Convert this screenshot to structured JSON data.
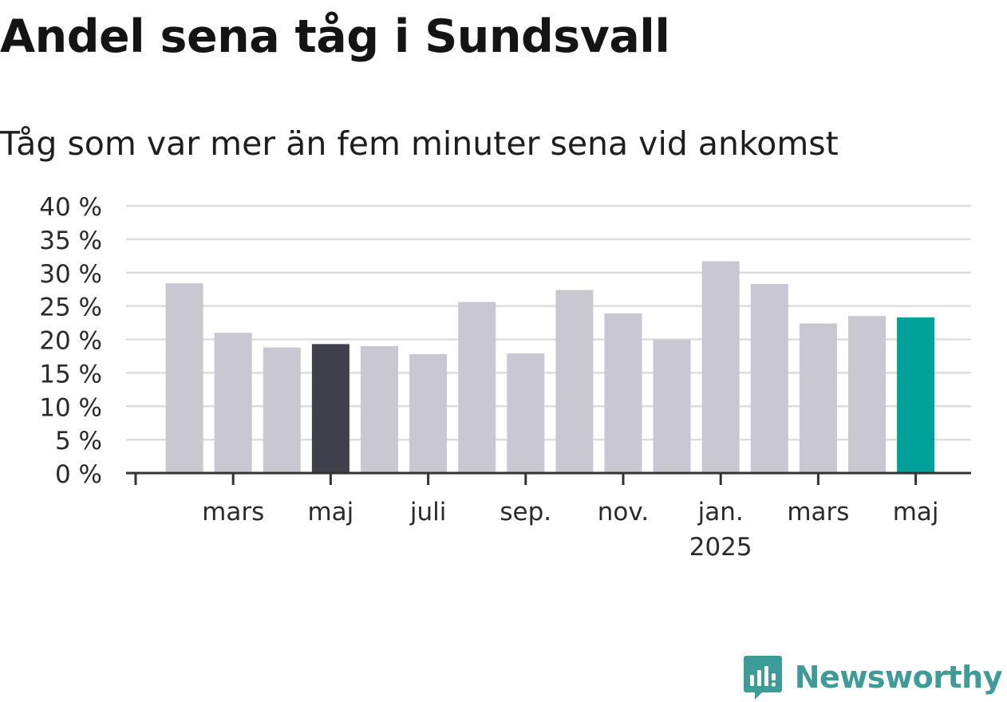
{
  "title": "Andel sena tåg i Sundsvall",
  "subtitle": "Tåg som var mer än fem minuter sena vid ankomst",
  "brand": {
    "name": "Newsworthy",
    "color": "#3e9c98"
  },
  "colors": {
    "bar_default": "#c8c7d2",
    "bar_highlight_dark": "#403f4c",
    "bar_highlight_latest": "#00a19a",
    "gridline": "#dddddd",
    "axis": "#333333"
  },
  "chart_data": {
    "type": "bar",
    "categories": [
      "2024-02",
      "2024-03",
      "2024-04",
      "2024-05",
      "2024-06",
      "2024-07",
      "2024-08",
      "2024-09",
      "2024-10",
      "2024-11",
      "2024-12",
      "2025-01",
      "2025-02",
      "2025-03",
      "2025-04",
      "2025-05"
    ],
    "values": [
      28.4,
      21.0,
      18.8,
      19.3,
      19.0,
      17.8,
      25.6,
      17.9,
      27.4,
      23.9,
      20.0,
      31.7,
      28.3,
      22.4,
      23.5,
      23.3
    ],
    "highlight_dark_index": 3,
    "highlight_latest_index": 15,
    "ylim": [
      0,
      40
    ],
    "y_ticks": [
      {
        "value": 40,
        "label": "40 %"
      },
      {
        "value": 35,
        "label": "35 %"
      },
      {
        "value": 30,
        "label": "30 %"
      },
      {
        "value": 25,
        "label": "25 %"
      },
      {
        "value": 20,
        "label": "20 %"
      },
      {
        "value": 15,
        "label": "15 %"
      },
      {
        "value": 10,
        "label": "10 %"
      },
      {
        "value": 5,
        "label": "5 %"
      },
      {
        "value": 0,
        "label": "0 %"
      }
    ],
    "x_tick_marks": [
      "2024-01",
      "2024-03",
      "2024-05",
      "2024-07",
      "2024-09",
      "2024-11",
      "2025-01",
      "2025-03",
      "2025-05"
    ],
    "x_tick_labels": [
      {
        "at": "2024-03",
        "label": "mars",
        "sub": ""
      },
      {
        "at": "2024-05",
        "label": "maj",
        "sub": ""
      },
      {
        "at": "2024-07",
        "label": "juli",
        "sub": ""
      },
      {
        "at": "2024-09",
        "label": "sep.",
        "sub": ""
      },
      {
        "at": "2024-11",
        "label": "nov.",
        "sub": ""
      },
      {
        "at": "2025-01",
        "label": "jan.",
        "sub": "2025"
      },
      {
        "at": "2025-03",
        "label": "mars",
        "sub": ""
      },
      {
        "at": "2025-05",
        "label": "maj",
        "sub": ""
      }
    ],
    "xlabel": "",
    "ylabel": "",
    "grid": true,
    "legend": "none"
  }
}
